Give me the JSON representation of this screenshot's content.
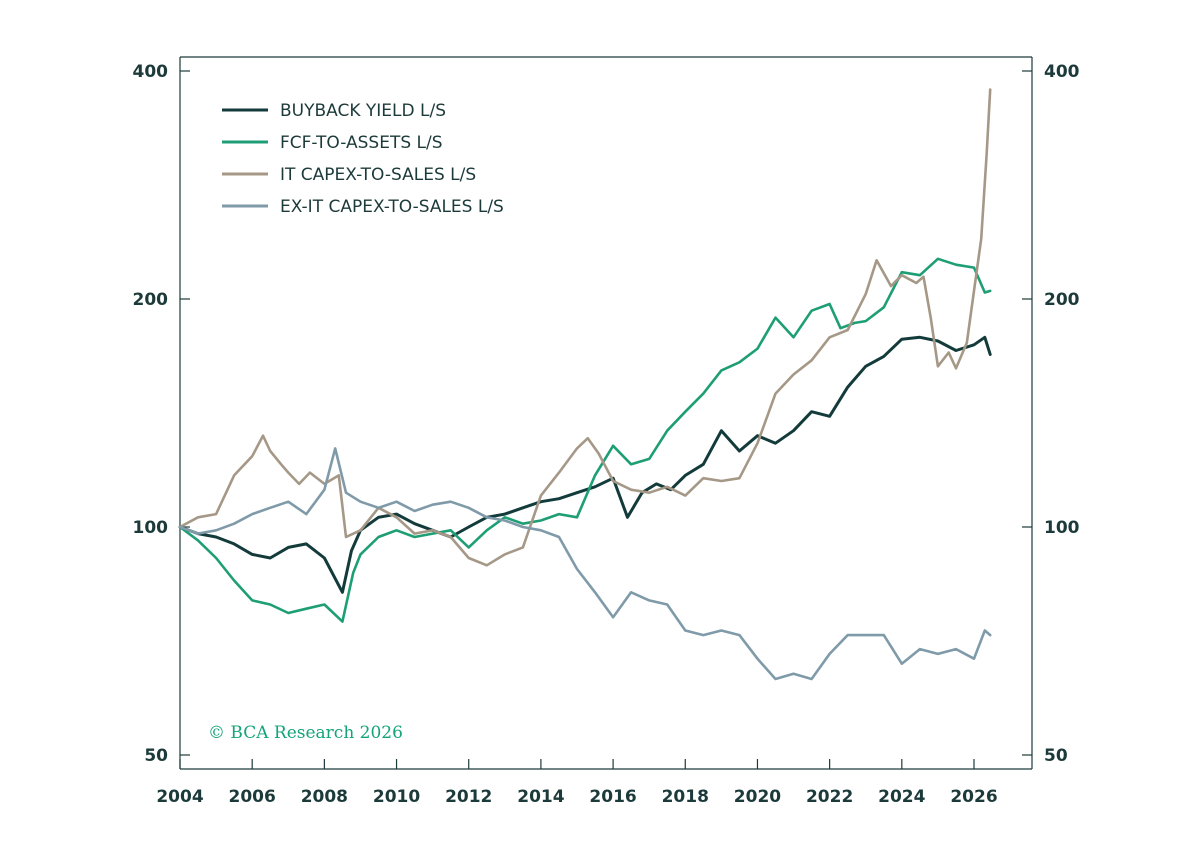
{
  "chart_data": {
    "type": "line",
    "title": "",
    "xlabel": "",
    "ylabel": "",
    "y_scale": "log",
    "ylim": [
      50,
      420
    ],
    "xlim": [
      2004,
      2027.5
    ],
    "left_ticks": [
      400,
      200,
      100,
      50
    ],
    "right_ticks": [
      400,
      200,
      100,
      50
    ],
    "x_ticks": [
      2004,
      2006,
      2008,
      2010,
      2012,
      2014,
      2016,
      2018,
      2020,
      2022,
      2024,
      2026
    ],
    "legend_position": "top-left",
    "credit": "© BCA Research 2026",
    "series": [
      {
        "name": "BUYBACK YIELD L/S",
        "color": "#143b3b",
        "points": [
          [
            2004,
            100
          ],
          [
            2004.5,
            98
          ],
          [
            2005,
            97
          ],
          [
            2005.5,
            95
          ],
          [
            2006,
            92
          ],
          [
            2006.5,
            91
          ],
          [
            2007,
            94
          ],
          [
            2007.5,
            95
          ],
          [
            2008,
            91
          ],
          [
            2008.5,
            82
          ],
          [
            2008.75,
            93
          ],
          [
            2009,
            99
          ],
          [
            2009.5,
            103
          ],
          [
            2010,
            104
          ],
          [
            2010.5,
            101
          ],
          [
            2011,
            99
          ],
          [
            2011.5,
            97
          ],
          [
            2012,
            100
          ],
          [
            2012.5,
            103
          ],
          [
            2013,
            104
          ],
          [
            2013.5,
            106
          ],
          [
            2014,
            108
          ],
          [
            2014.5,
            109
          ],
          [
            2015,
            111
          ],
          [
            2015.5,
            113
          ],
          [
            2016,
            116
          ],
          [
            2016.4,
            103
          ],
          [
            2016.8,
            111
          ],
          [
            2017.2,
            114
          ],
          [
            2017.6,
            112
          ],
          [
            2018,
            117
          ],
          [
            2018.5,
            121
          ],
          [
            2019,
            134
          ],
          [
            2019.5,
            126
          ],
          [
            2020,
            132
          ],
          [
            2020.5,
            129
          ],
          [
            2021,
            134
          ],
          [
            2021.5,
            142
          ],
          [
            2022,
            140
          ],
          [
            2022.5,
            153
          ],
          [
            2023,
            163
          ],
          [
            2023.5,
            168
          ],
          [
            2024,
            177
          ],
          [
            2024.5,
            178
          ],
          [
            2025,
            176
          ],
          [
            2025.5,
            171
          ],
          [
            2026,
            174
          ],
          [
            2026.3,
            178
          ],
          [
            2026.45,
            169
          ]
        ]
      },
      {
        "name": "FCF-TO-ASSETS L/S",
        "color": "#1e9e74",
        "points": [
          [
            2004,
            100
          ],
          [
            2004.5,
            96
          ],
          [
            2005,
            91
          ],
          [
            2005.5,
            85
          ],
          [
            2006,
            80
          ],
          [
            2006.5,
            79
          ],
          [
            2007,
            77
          ],
          [
            2007.5,
            78
          ],
          [
            2008,
            79
          ],
          [
            2008.5,
            75
          ],
          [
            2008.8,
            87
          ],
          [
            2009,
            92
          ],
          [
            2009.5,
            97
          ],
          [
            2010,
            99
          ],
          [
            2010.5,
            97
          ],
          [
            2011,
            98
          ],
          [
            2011.5,
            99
          ],
          [
            2012,
            94
          ],
          [
            2012.5,
            99
          ],
          [
            2013,
            103
          ],
          [
            2013.5,
            101
          ],
          [
            2014,
            102
          ],
          [
            2014.5,
            104
          ],
          [
            2015,
            103
          ],
          [
            2015.5,
            117
          ],
          [
            2016,
            128
          ],
          [
            2016.5,
            121
          ],
          [
            2017,
            123
          ],
          [
            2017.5,
            134
          ],
          [
            2018,
            142
          ],
          [
            2018.5,
            150
          ],
          [
            2019,
            161
          ],
          [
            2019.5,
            165
          ],
          [
            2020,
            172
          ],
          [
            2020.5,
            189
          ],
          [
            2021,
            178
          ],
          [
            2021.5,
            193
          ],
          [
            2022,
            197
          ],
          [
            2022.3,
            183
          ],
          [
            2022.7,
            186
          ],
          [
            2023,
            187
          ],
          [
            2023.5,
            195
          ],
          [
            2024,
            217
          ],
          [
            2024.5,
            215
          ],
          [
            2025,
            226
          ],
          [
            2025.5,
            222
          ],
          [
            2026,
            220
          ],
          [
            2026.3,
            204
          ],
          [
            2026.45,
            205
          ]
        ]
      },
      {
        "name": "IT CAPEX-TO-SALES L/S",
        "color": "#a59887",
        "points": [
          [
            2004,
            100
          ],
          [
            2004.5,
            103
          ],
          [
            2005,
            104
          ],
          [
            2005.5,
            117
          ],
          [
            2006,
            124
          ],
          [
            2006.3,
            132
          ],
          [
            2006.5,
            126
          ],
          [
            2006.8,
            121
          ],
          [
            2007,
            118
          ],
          [
            2007.3,
            114
          ],
          [
            2007.6,
            118
          ],
          [
            2008,
            114
          ],
          [
            2008.4,
            117
          ],
          [
            2008.6,
            97
          ],
          [
            2009,
            99
          ],
          [
            2009.5,
            106
          ],
          [
            2010,
            103
          ],
          [
            2010.5,
            98
          ],
          [
            2011,
            99
          ],
          [
            2011.5,
            97
          ],
          [
            2012,
            91
          ],
          [
            2012.5,
            89
          ],
          [
            2013,
            92
          ],
          [
            2013.5,
            94
          ],
          [
            2014,
            110
          ],
          [
            2014.5,
            118
          ],
          [
            2015,
            127
          ],
          [
            2015.3,
            131
          ],
          [
            2015.6,
            125
          ],
          [
            2016,
            115
          ],
          [
            2016.5,
            112
          ],
          [
            2017,
            111
          ],
          [
            2017.5,
            113
          ],
          [
            2018,
            110
          ],
          [
            2018.5,
            116
          ],
          [
            2019,
            115
          ],
          [
            2019.5,
            116
          ],
          [
            2020,
            129
          ],
          [
            2020.5,
            150
          ],
          [
            2021,
            159
          ],
          [
            2021.5,
            166
          ],
          [
            2022,
            178
          ],
          [
            2022.5,
            182
          ],
          [
            2023,
            203
          ],
          [
            2023.3,
            225
          ],
          [
            2023.7,
            208
          ],
          [
            2024,
            215
          ],
          [
            2024.4,
            210
          ],
          [
            2024.6,
            214
          ],
          [
            2024.8,
            189
          ],
          [
            2025,
            163
          ],
          [
            2025.3,
            170
          ],
          [
            2025.5,
            162
          ],
          [
            2025.8,
            175
          ],
          [
            2026,
            205
          ],
          [
            2026.2,
            240
          ],
          [
            2026.35,
            310
          ],
          [
            2026.45,
            378
          ]
        ]
      },
      {
        "name": "EX-IT CAPEX-TO-SALES L/S",
        "color": "#7f9aa8",
        "points": [
          [
            2004,
            100
          ],
          [
            2004.5,
            98
          ],
          [
            2005,
            99
          ],
          [
            2005.5,
            101
          ],
          [
            2006,
            104
          ],
          [
            2006.5,
            106
          ],
          [
            2007,
            108
          ],
          [
            2007.5,
            104
          ],
          [
            2008,
            112
          ],
          [
            2008.3,
            127
          ],
          [
            2008.6,
            111
          ],
          [
            2009,
            108
          ],
          [
            2009.5,
            106
          ],
          [
            2010,
            108
          ],
          [
            2010.5,
            105
          ],
          [
            2011,
            107
          ],
          [
            2011.5,
            108
          ],
          [
            2012,
            106
          ],
          [
            2012.5,
            103
          ],
          [
            2013,
            102
          ],
          [
            2013.5,
            100
          ],
          [
            2014,
            99
          ],
          [
            2014.5,
            97
          ],
          [
            2015,
            88
          ],
          [
            2015.5,
            82
          ],
          [
            2016,
            76
          ],
          [
            2016.5,
            82
          ],
          [
            2017,
            80
          ],
          [
            2017.5,
            79
          ],
          [
            2018,
            73
          ],
          [
            2018.5,
            72
          ],
          [
            2019,
            73
          ],
          [
            2019.5,
            72
          ],
          [
            2020,
            67
          ],
          [
            2020.5,
            63
          ],
          [
            2021,
            64
          ],
          [
            2021.5,
            63
          ],
          [
            2022,
            68
          ],
          [
            2022.5,
            72
          ],
          [
            2023,
            72
          ],
          [
            2023.5,
            72
          ],
          [
            2024,
            66
          ],
          [
            2024.5,
            69
          ],
          [
            2025,
            68
          ],
          [
            2025.5,
            69
          ],
          [
            2026,
            67
          ],
          [
            2026.3,
            73
          ],
          [
            2026.45,
            72
          ]
        ]
      }
    ]
  }
}
